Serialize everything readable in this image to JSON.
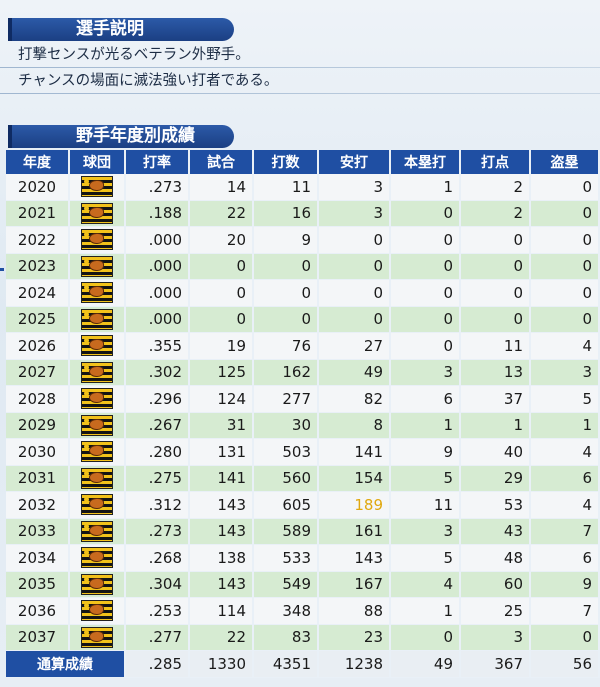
{
  "description": {
    "title": "選手説明",
    "lines": [
      "打撃センスが光るベテラン外野手。",
      "チャンスの場面に滅法強い打者である。"
    ]
  },
  "stats": {
    "title": "野手年度別成績",
    "columns": [
      "年度",
      "球団",
      "打率",
      "試合",
      "打数",
      "安打",
      "本塁打",
      "打点",
      "盗塁"
    ],
    "rows": [
      {
        "year": "2020",
        "avg": ".273",
        "games": "14",
        "ab": "11",
        "hits": "3",
        "hr": "1",
        "rbi": "2",
        "sb": "0"
      },
      {
        "year": "2021",
        "avg": ".188",
        "games": "22",
        "ab": "16",
        "hits": "3",
        "hr": "0",
        "rbi": "2",
        "sb": "0"
      },
      {
        "year": "2022",
        "avg": ".000",
        "games": "20",
        "ab": "9",
        "hits": "0",
        "hr": "0",
        "rbi": "0",
        "sb": "0"
      },
      {
        "year": "2023",
        "avg": ".000",
        "games": "0",
        "ab": "0",
        "hits": "0",
        "hr": "0",
        "rbi": "0",
        "sb": "0"
      },
      {
        "year": "2024",
        "avg": ".000",
        "games": "0",
        "ab": "0",
        "hits": "0",
        "hr": "0",
        "rbi": "0",
        "sb": "0"
      },
      {
        "year": "2025",
        "avg": ".000",
        "games": "0",
        "ab": "0",
        "hits": "0",
        "hr": "0",
        "rbi": "0",
        "sb": "0"
      },
      {
        "year": "2026",
        "avg": ".355",
        "games": "19",
        "ab": "76",
        "hits": "27",
        "hr": "0",
        "rbi": "11",
        "sb": "4"
      },
      {
        "year": "2027",
        "avg": ".302",
        "games": "125",
        "ab": "162",
        "hits": "49",
        "hr": "3",
        "rbi": "13",
        "sb": "3"
      },
      {
        "year": "2028",
        "avg": ".296",
        "games": "124",
        "ab": "277",
        "hits": "82",
        "hr": "6",
        "rbi": "37",
        "sb": "5"
      },
      {
        "year": "2029",
        "avg": ".267",
        "games": "31",
        "ab": "30",
        "hits": "8",
        "hr": "1",
        "rbi": "1",
        "sb": "1"
      },
      {
        "year": "2030",
        "avg": ".280",
        "games": "131",
        "ab": "503",
        "hits": "141",
        "hr": "9",
        "rbi": "40",
        "sb": "4"
      },
      {
        "year": "2031",
        "avg": ".275",
        "games": "141",
        "ab": "560",
        "hits": "154",
        "hr": "5",
        "rbi": "29",
        "sb": "6"
      },
      {
        "year": "2032",
        "avg": ".312",
        "games": "143",
        "ab": "605",
        "hits": "189",
        "hr": "11",
        "rbi": "53",
        "sb": "4",
        "hits_highlight": true
      },
      {
        "year": "2033",
        "avg": ".273",
        "games": "143",
        "ab": "589",
        "hits": "161",
        "hr": "3",
        "rbi": "43",
        "sb": "7"
      },
      {
        "year": "2034",
        "avg": ".268",
        "games": "138",
        "ab": "533",
        "hits": "143",
        "hr": "5",
        "rbi": "48",
        "sb": "6"
      },
      {
        "year": "2035",
        "avg": ".304",
        "games": "143",
        "ab": "549",
        "hits": "167",
        "hr": "4",
        "rbi": "60",
        "sb": "9"
      },
      {
        "year": "2036",
        "avg": ".253",
        "games": "114",
        "ab": "348",
        "hits": "88",
        "hr": "1",
        "rbi": "25",
        "sb": "7"
      },
      {
        "year": "2037",
        "avg": ".277",
        "games": "22",
        "ab": "83",
        "hits": "23",
        "hr": "0",
        "rbi": "3",
        "sb": "0"
      }
    ],
    "team_icon": "tigers-logo-icon",
    "total": {
      "label": "通算成績",
      "avg": ".285",
      "games": "1330",
      "ab": "4351",
      "hits": "1238",
      "hr": "49",
      "rbi": "367",
      "sb": "56"
    },
    "colors": {
      "header": "#1f4fa3",
      "row_odd": "#f4f6f8",
      "row_even": "#d6ebd2",
      "highlight": "#e0a80f"
    }
  }
}
